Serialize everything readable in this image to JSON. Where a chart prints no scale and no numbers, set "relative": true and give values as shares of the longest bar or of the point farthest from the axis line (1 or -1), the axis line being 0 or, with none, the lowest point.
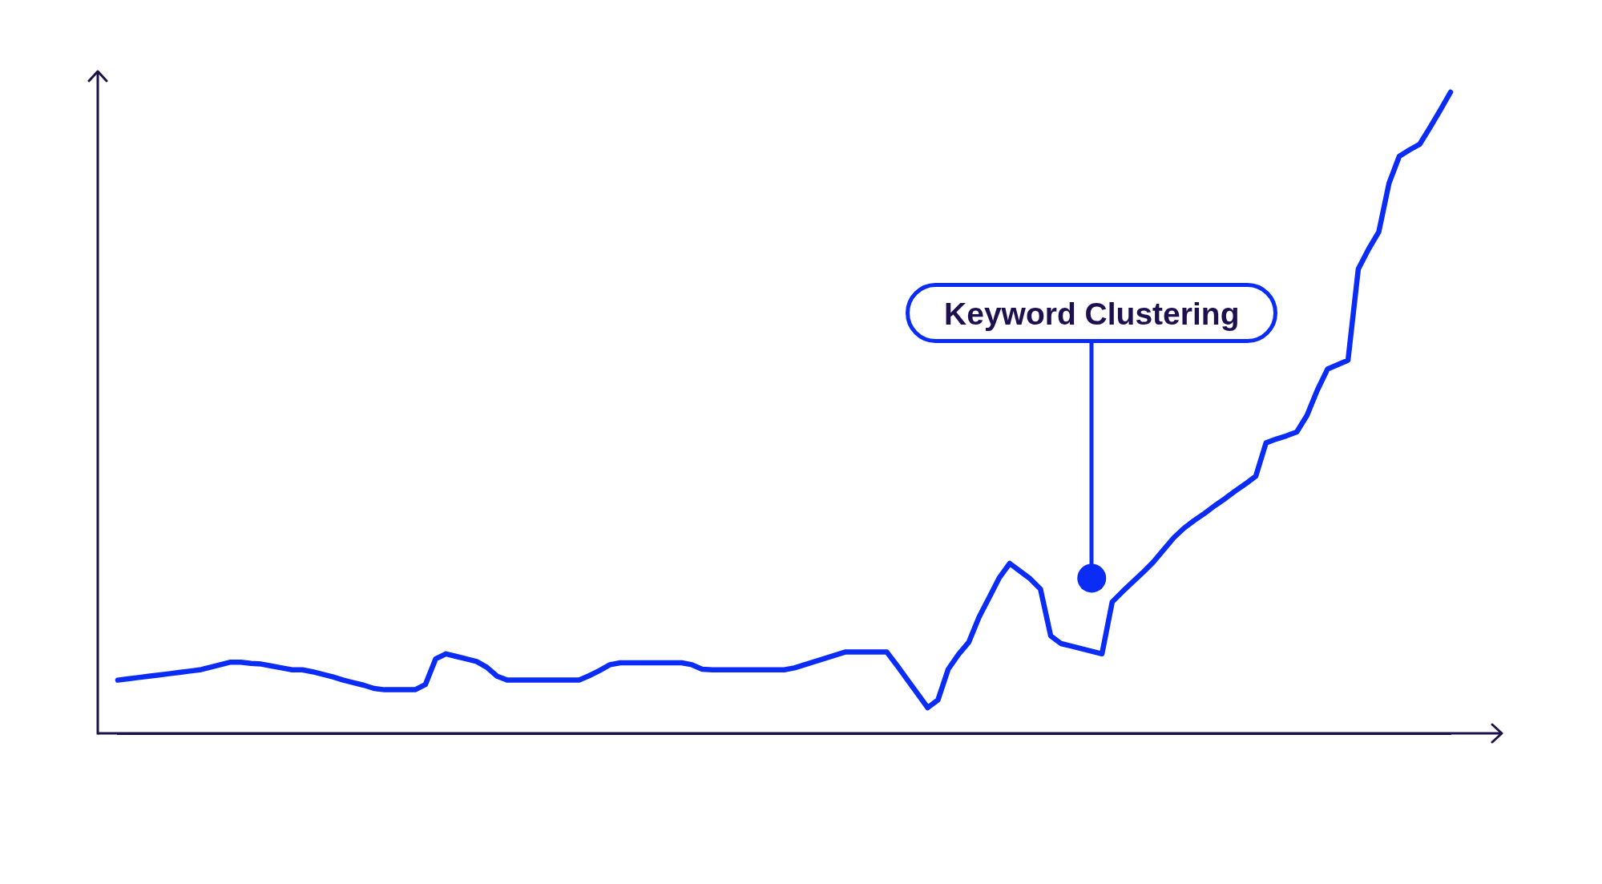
{
  "chart_data": {
    "type": "line",
    "relative": true,
    "tick_labels": false,
    "categories": [
      null,
      null,
      null,
      null,
      null,
      null,
      null,
      null,
      null,
      null,
      null,
      null,
      null,
      null,
      null,
      null,
      null,
      null,
      null,
      null,
      null,
      null,
      null,
      null,
      null,
      null,
      null,
      null,
      null,
      null,
      null,
      null,
      null,
      null,
      null,
      null,
      null,
      null,
      null,
      null,
      null,
      null,
      null,
      null,
      null,
      null,
      null,
      null,
      null,
      null,
      null,
      null,
      null,
      null,
      null,
      null,
      null,
      null,
      null,
      null,
      null,
      null,
      null,
      null,
      null,
      null,
      null,
      null,
      null,
      null,
      null,
      null,
      null,
      null,
      null,
      null,
      null,
      null,
      null,
      null,
      null,
      null,
      null,
      null,
      null,
      null,
      null,
      null,
      null,
      null,
      null,
      null,
      null,
      null,
      null,
      null,
      null,
      null,
      null,
      null,
      null,
      null,
      null,
      null,
      null,
      null,
      null,
      null,
      null,
      null,
      null,
      null,
      null,
      null,
      null,
      null,
      null,
      null,
      null,
      null,
      null,
      null,
      null,
      null,
      null,
      null,
      null,
      null,
      null,
      null,
      null
    ],
    "series": [
      {
        "color": "#0a2cf5",
        "values": [
          0.083,
          0.085,
          0.087,
          0.089,
          0.091,
          0.093,
          0.095,
          0.097,
          0.099,
          0.103,
          0.107,
          0.111,
          0.111,
          0.109,
          0.108,
          0.105,
          0.102,
          0.099,
          0.099,
          0.096,
          0.092,
          0.088,
          0.083,
          0.079,
          0.075,
          0.07,
          0.068,
          0.068,
          0.068,
          0.068,
          0.076,
          0.116,
          0.124,
          0.12,
          0.116,
          0.112,
          0.103,
          0.089,
          0.083,
          0.083,
          0.083,
          0.083,
          0.083,
          0.083,
          0.083,
          0.083,
          0.09,
          0.098,
          0.107,
          0.11,
          0.11,
          0.11,
          0.11,
          0.11,
          0.11,
          0.11,
          0.107,
          0.1,
          0.099,
          0.099,
          0.099,
          0.099,
          0.099,
          0.099,
          0.099,
          0.099,
          0.102,
          0.107,
          0.112,
          0.117,
          0.122,
          0.127,
          0.127,
          0.127,
          0.127,
          0.127,
          0.106,
          0.084,
          0.062,
          0.04,
          0.052,
          0.1,
          0.123,
          0.142,
          0.181,
          0.212,
          0.243,
          0.265,
          0.253,
          0.241,
          0.225,
          0.152,
          0.14,
          0.136,
          0.132,
          0.128,
          0.124,
          0.205,
          0.221,
          0.236,
          0.251,
          0.267,
          0.286,
          0.305,
          0.32,
          0.332,
          0.343,
          0.355,
          0.366,
          0.378,
          0.389,
          0.401,
          0.453,
          0.459,
          0.464,
          0.47,
          0.496,
          0.535,
          0.568,
          0.575,
          0.582,
          0.724,
          0.755,
          0.782,
          0.858,
          0.9,
          0.91,
          0.919,
          0.945,
          0.972,
          1
        ]
      },
      {
        "color": "#0a2cf5",
        "marker": "circle",
        "values": [
          null,
          null,
          null,
          null,
          null,
          null,
          null,
          null,
          null,
          null,
          null,
          null,
          null,
          null,
          null,
          null,
          null,
          null,
          null,
          null,
          null,
          null,
          null,
          null,
          null,
          null,
          null,
          null,
          null,
          null,
          null,
          null,
          null,
          null,
          null,
          null,
          null,
          null,
          null,
          null,
          null,
          null,
          null,
          null,
          null,
          null,
          null,
          null,
          null,
          null,
          null,
          null,
          null,
          null,
          null,
          null,
          null,
          null,
          null,
          null,
          null,
          null,
          null,
          null,
          null,
          null,
          null,
          null,
          null,
          null,
          null,
          null,
          null,
          null,
          null,
          null,
          null,
          null,
          null,
          null,
          null,
          null,
          null,
          null,
          null,
          null,
          null,
          null,
          null,
          null,
          null,
          null,
          null,
          null,
          null,
          0.242,
          null,
          null,
          null,
          null,
          null,
          null,
          null,
          null,
          null,
          null,
          null,
          null,
          null,
          null,
          null,
          null,
          null,
          null,
          null,
          null,
          null,
          null,
          null,
          null,
          null,
          null,
          null,
          null,
          null,
          null,
          null,
          null,
          null,
          null,
          null
        ]
      }
    ],
    "annotations": [
      "Keyword Clustering"
    ]
  }
}
